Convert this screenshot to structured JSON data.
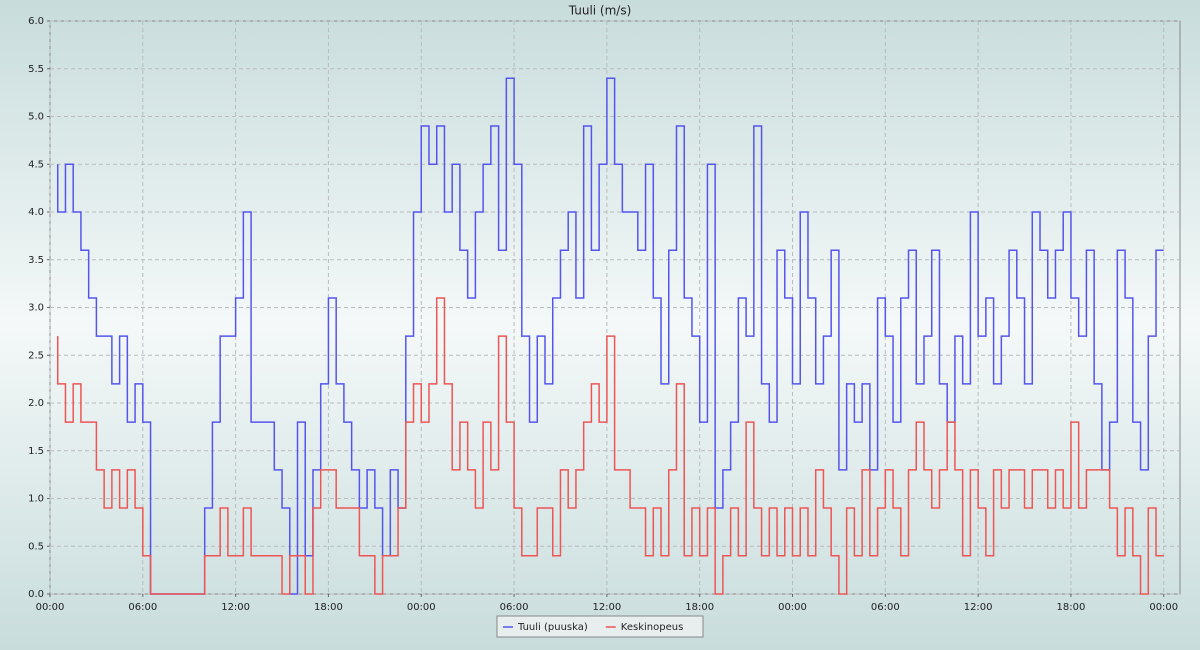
{
  "chart_data": {
    "type": "line",
    "step": true,
    "title": "Tuuli (m/s)",
    "grid": true,
    "legend": "bottom",
    "x": [
      0.5,
      1,
      1.5,
      2,
      2.5,
      3,
      3.5,
      4,
      4.5,
      5,
      5.5,
      6,
      6.5,
      7,
      7.5,
      8,
      8.5,
      9,
      9.5,
      10,
      10.5,
      11,
      11.5,
      12,
      12.5,
      13,
      13.5,
      14,
      14.5,
      15,
      15.5,
      16,
      16.5,
      17,
      17.5,
      18,
      18.5,
      19,
      19.5,
      20,
      20.5,
      21,
      21.5,
      22,
      22.5,
      23,
      23.5,
      24,
      24.5,
      25,
      25.5,
      26,
      26.5,
      27,
      27.5,
      28,
      28.5,
      29,
      29.5,
      30,
      30.5,
      31,
      31.5,
      32,
      32.5,
      33,
      33.5,
      34,
      34.5,
      35,
      35.5,
      36,
      36.5,
      37,
      37.5,
      38,
      38.5,
      39,
      39.5,
      40,
      40.5,
      41,
      41.5,
      42,
      42.5,
      43,
      43.5,
      44,
      44.5,
      45,
      45.5,
      46,
      46.5,
      47,
      47.5,
      48,
      48.5,
      49,
      49.5,
      50,
      50.5,
      51,
      51.5,
      52,
      52.5,
      53,
      53.5,
      54,
      54.5,
      55,
      55.5,
      56,
      56.5,
      57,
      57.5,
      58,
      58.5,
      59,
      59.5,
      60,
      60.5,
      61,
      61.5,
      62,
      62.5,
      63,
      63.5,
      64,
      64.5,
      65,
      65.5,
      66,
      66.5,
      67,
      67.5,
      68,
      68.5,
      69,
      69.5,
      70,
      70.5,
      71,
      71.5,
      72
    ],
    "series": [
      {
        "name": "Tuuli (puuska)",
        "color": "#5555ee",
        "values": [
          4.5,
          4.0,
          4.5,
          4.0,
          3.6,
          3.1,
          2.7,
          2.7,
          2.2,
          2.7,
          1.8,
          2.2,
          1.8,
          0,
          0,
          0,
          0,
          0,
          0,
          0,
          0.9,
          1.8,
          2.7,
          2.7,
          3.1,
          4.0,
          1.8,
          1.8,
          1.8,
          1.3,
          0.9,
          0,
          1.8,
          0.4,
          1.3,
          2.2,
          3.1,
          2.2,
          1.8,
          1.3,
          0.9,
          1.3,
          0.9,
          0.4,
          1.3,
          0.9,
          2.7,
          4.0,
          4.9,
          4.5,
          4.9,
          4.0,
          4.5,
          3.6,
          3.1,
          4.0,
          4.5,
          4.9,
          3.6,
          5.4,
          4.5,
          2.7,
          1.8,
          2.7,
          2.2,
          3.1,
          3.6,
          4.0,
          3.1,
          4.9,
          3.6,
          4.5,
          5.4,
          4.5,
          4.0,
          4.0,
          3.6,
          4.5,
          3.1,
          2.2,
          3.6,
          4.9,
          3.1,
          2.7,
          1.8,
          4.5,
          0.9,
          1.3,
          1.8,
          3.1,
          2.7,
          4.9,
          2.2,
          1.8,
          3.6,
          3.1,
          2.2,
          4.0,
          3.1,
          2.2,
          2.7,
          3.6,
          1.3,
          2.2,
          1.8,
          2.2,
          1.3,
          3.1,
          2.7,
          1.8,
          3.1,
          3.6,
          2.2,
          2.7,
          3.6,
          2.2,
          1.8,
          2.7,
          2.2,
          4.0,
          2.7,
          3.1,
          2.2,
          2.7,
          3.6,
          3.1,
          2.2,
          4.0,
          3.6,
          3.1,
          3.6,
          4.0,
          3.1,
          2.7,
          3.6,
          2.2,
          1.3,
          1.8,
          3.6,
          3.1,
          1.8,
          1.3,
          2.7,
          3.6
        ]
      },
      {
        "name": "Keskinopeus",
        "color": "#ee5555",
        "values": [
          2.7,
          2.2,
          1.8,
          2.2,
          1.8,
          1.8,
          1.3,
          0.9,
          1.3,
          0.9,
          1.3,
          0.9,
          0.4,
          0,
          0,
          0,
          0,
          0,
          0,
          0,
          0.4,
          0.4,
          0.9,
          0.4,
          0.4,
          0.9,
          0.4,
          0.4,
          0.4,
          0.4,
          0,
          0.4,
          0.4,
          0,
          0.9,
          1.3,
          1.3,
          0.9,
          0.9,
          0.9,
          0.4,
          0.4,
          0,
          0.4,
          0.4,
          0.9,
          1.8,
          2.2,
          1.8,
          2.2,
          3.1,
          2.2,
          1.3,
          1.8,
          1.3,
          0.9,
          1.8,
          1.3,
          2.7,
          1.8,
          0.9,
          0.4,
          0.4,
          0.9,
          0.9,
          0.4,
          1.3,
          0.9,
          1.3,
          1.8,
          2.2,
          1.8,
          2.7,
          1.3,
          1.3,
          0.9,
          0.9,
          0.4,
          0.9,
          0.4,
          1.3,
          2.2,
          0.4,
          0.9,
          0.4,
          0.9,
          0,
          0.4,
          0.9,
          0.4,
          1.8,
          0.9,
          0.4,
          0.9,
          0.4,
          0.9,
          0.4,
          0.9,
          0.4,
          1.3,
          0.9,
          0.4,
          0,
          0.9,
          0.4,
          1.3,
          0.4,
          0.9,
          1.3,
          0.9,
          0.4,
          1.3,
          1.8,
          1.3,
          0.9,
          1.3,
          1.8,
          1.3,
          0.4,
          1.3,
          0.9,
          0.4,
          1.3,
          0.9,
          1.3,
          1.3,
          0.9,
          1.3,
          1.3,
          0.9,
          1.3,
          0.9,
          1.8,
          0.9,
          1.3,
          1.3,
          1.3,
          0.9,
          0.4,
          0.9,
          0.4,
          0,
          0.9,
          0.4
        ]
      }
    ],
    "xlim": [
      0,
      73.05
    ],
    "xticks": [
      {
        "value": 0,
        "label": "00:00"
      },
      {
        "value": 6,
        "label": "06:00"
      },
      {
        "value": 12,
        "label": "12:00"
      },
      {
        "value": 18,
        "label": "18:00"
      },
      {
        "value": 24,
        "label": "00:00"
      },
      {
        "value": 30,
        "label": "06:00"
      },
      {
        "value": 36,
        "label": "12:00"
      },
      {
        "value": 42,
        "label": "18:00"
      },
      {
        "value": 48,
        "label": "00:00"
      },
      {
        "value": 54,
        "label": "06:00"
      },
      {
        "value": 60,
        "label": "12:00"
      },
      {
        "value": 66,
        "label": "18:00"
      },
      {
        "value": 72,
        "label": "00:00"
      }
    ],
    "ylim": [
      0,
      6
    ],
    "yticks": [
      {
        "value": 0,
        "label": "0.0"
      },
      {
        "value": 0.5,
        "label": "0.5"
      },
      {
        "value": 1,
        "label": "1.0"
      },
      {
        "value": 1.5,
        "label": "1.5"
      },
      {
        "value": 2,
        "label": "2.0"
      },
      {
        "value": 2.5,
        "label": "2.5"
      },
      {
        "value": 3,
        "label": "3.0"
      },
      {
        "value": 3.5,
        "label": "3.5"
      },
      {
        "value": 4,
        "label": "4.0"
      },
      {
        "value": 4.5,
        "label": "4.5"
      },
      {
        "value": 5,
        "label": "5.0"
      },
      {
        "value": 5.5,
        "label": "5.5"
      },
      {
        "value": 6,
        "label": "6.0"
      }
    ]
  }
}
